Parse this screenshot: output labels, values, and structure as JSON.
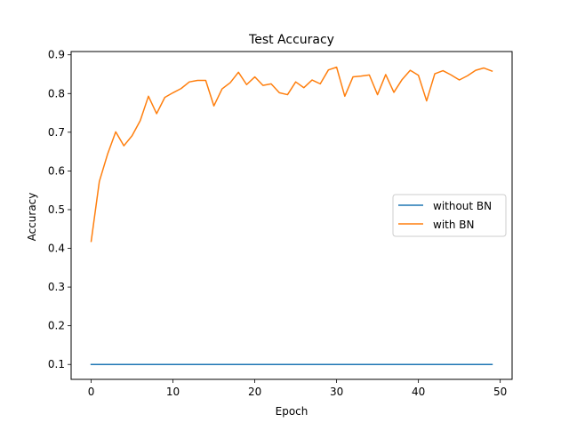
{
  "chart_data": {
    "type": "line",
    "title": "Test Accuracy",
    "xlabel": "Epoch",
    "ylabel": "Accuracy",
    "xlim": [
      -2.45,
      51.45
    ],
    "ylim": [
      0.0615,
      0.9085
    ],
    "xticks": [
      0,
      10,
      20,
      30,
      40,
      50
    ],
    "yticks": [
      0.1,
      0.2,
      0.3,
      0.4,
      0.5,
      0.6,
      0.7,
      0.8,
      0.9
    ],
    "ytick_labels": [
      "0.1",
      "0.2",
      "0.3",
      "0.4",
      "0.5",
      "0.6",
      "0.7",
      "0.8",
      "0.9"
    ],
    "grid": false,
    "legend_position": "center-right",
    "x": [
      0,
      1,
      2,
      3,
      4,
      5,
      6,
      7,
      8,
      9,
      10,
      11,
      12,
      13,
      14,
      15,
      16,
      17,
      18,
      19,
      20,
      21,
      22,
      23,
      24,
      25,
      26,
      27,
      28,
      29,
      30,
      31,
      32,
      33,
      34,
      35,
      36,
      37,
      38,
      39,
      40,
      41,
      42,
      43,
      44,
      45,
      46,
      47,
      48,
      49
    ],
    "series": [
      {
        "name": "without BN",
        "color": "#1f77b4",
        "values": [
          0.1,
          0.1,
          0.1,
          0.1,
          0.1,
          0.1,
          0.1,
          0.1,
          0.1,
          0.1,
          0.1,
          0.1,
          0.1,
          0.1,
          0.1,
          0.1,
          0.1,
          0.1,
          0.1,
          0.1,
          0.1,
          0.1,
          0.1,
          0.1,
          0.1,
          0.1,
          0.1,
          0.1,
          0.1,
          0.1,
          0.1,
          0.1,
          0.1,
          0.1,
          0.1,
          0.1,
          0.1,
          0.1,
          0.1,
          0.1,
          0.1,
          0.1,
          0.1,
          0.1,
          0.1,
          0.1,
          0.1,
          0.1,
          0.1,
          0.1
        ]
      },
      {
        "name": "with BN",
        "color": "#ff7f0e",
        "values": [
          0.418,
          0.573,
          0.643,
          0.701,
          0.665,
          0.691,
          0.73,
          0.793,
          0.748,
          0.79,
          0.802,
          0.813,
          0.83,
          0.834,
          0.834,
          0.768,
          0.812,
          0.828,
          0.855,
          0.823,
          0.843,
          0.821,
          0.825,
          0.802,
          0.797,
          0.83,
          0.815,
          0.835,
          0.825,
          0.861,
          0.868,
          0.793,
          0.843,
          0.845,
          0.848,
          0.797,
          0.849,
          0.803,
          0.836,
          0.86,
          0.847,
          0.781,
          0.851,
          0.859,
          0.848,
          0.835,
          0.846,
          0.86,
          0.866,
          0.858
        ]
      }
    ]
  }
}
